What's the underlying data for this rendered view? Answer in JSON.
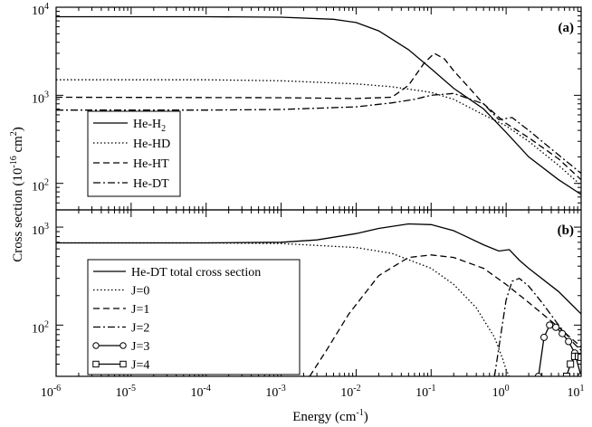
{
  "figure": {
    "xlabel": "Energy (cm",
    "xlabel_sup": "-1",
    "xlabel_end": ")",
    "ylabel": "Cross section (10",
    "ylabel_sup1": "-16",
    "ylabel_mid": " cm",
    "ylabel_sup2": "2",
    "ylabel_end": ")"
  },
  "chart_data": [
    {
      "panel_label": "(a)",
      "type": "line",
      "x_scale": "log",
      "y_scale": "log",
      "xlim": [
        1e-06,
        10
      ],
      "ylim": [
        50,
        10000
      ],
      "x_ticks": [
        "10",
        "10",
        "10",
        "10",
        "10",
        "10",
        "10",
        "10"
      ],
      "x_tick_exps": [
        "-6",
        "-5",
        "-4",
        "-3",
        "-2",
        "-1",
        "0",
        "1"
      ],
      "y_ticks": [
        "10",
        "10",
        "10"
      ],
      "y_tick_exps": [
        "2",
        "3",
        "4"
      ],
      "legend_position": "lower-left",
      "series": [
        {
          "name": "He-H",
          "name_sub": "2",
          "style": "solid",
          "x": [
            1e-06,
            0.0001,
            0.001,
            0.005,
            0.01,
            0.02,
            0.05,
            0.1,
            0.2,
            0.5,
            1,
            2,
            5,
            10
          ],
          "y": [
            7800,
            7800,
            7700,
            7300,
            6700,
            5400,
            3300,
            2000,
            1200,
            700,
            380,
            200,
            110,
            75
          ]
        },
        {
          "name": "He-HD",
          "style": "dotted",
          "x": [
            1e-06,
            0.0001,
            0.001,
            0.01,
            0.03,
            0.06,
            0.1,
            0.2,
            0.5,
            1,
            2,
            5,
            10
          ],
          "y": [
            1500,
            1500,
            1460,
            1350,
            1250,
            1150,
            1080,
            900,
            600,
            450,
            300,
            160,
            95
          ]
        },
        {
          "name": "He-HT",
          "style": "dashed",
          "x": [
            1e-06,
            0.001,
            0.01,
            0.03,
            0.05,
            0.08,
            0.11,
            0.15,
            0.2,
            0.3,
            0.5,
            1,
            2,
            5,
            10
          ],
          "y": [
            950,
            940,
            920,
            950,
            1300,
            2300,
            3000,
            2600,
            1900,
            1300,
            800,
            480,
            330,
            190,
            110
          ]
        },
        {
          "name": "He-DT",
          "style": "dashdot",
          "x": [
            1e-06,
            0.0001,
            0.001,
            0.01,
            0.03,
            0.06,
            0.1,
            0.2,
            0.5,
            0.8,
            1.2,
            2,
            5,
            10
          ],
          "y": [
            680,
            680,
            690,
            740,
            820,
            900,
            1000,
            1050,
            800,
            530,
            560,
            400,
            210,
            130
          ]
        }
      ]
    },
    {
      "panel_label": "(b)",
      "type": "line",
      "x_scale": "log",
      "y_scale": "log",
      "xlim": [
        1e-06,
        10
      ],
      "ylim": [
        30,
        1500
      ],
      "x_ticks": [
        "10",
        "10",
        "10",
        "10",
        "10",
        "10",
        "10",
        "10"
      ],
      "x_tick_exps": [
        "-6",
        "-5",
        "-4",
        "-3",
        "-2",
        "-1",
        "0",
        "1"
      ],
      "y_ticks": [
        "10",
        "10"
      ],
      "y_tick_exps": [
        "2",
        "3"
      ],
      "legend_position": "lower-left",
      "series": [
        {
          "name": "He-DT total cross section",
          "style": "solid",
          "x": [
            1e-06,
            0.0001,
            0.001,
            0.003,
            0.01,
            0.02,
            0.05,
            0.1,
            0.2,
            0.5,
            0.8,
            1.1,
            1.5,
            2,
            5,
            10
          ],
          "y": [
            690,
            690,
            700,
            740,
            860,
            970,
            1080,
            1060,
            920,
            660,
            570,
            590,
            460,
            380,
            220,
            130
          ]
        },
        {
          "name": "J=0",
          "style": "dotted",
          "x": [
            1e-06,
            0.0001,
            0.001,
            0.01,
            0.03,
            0.1,
            0.2,
            0.4,
            0.7,
            0.9,
            1.0,
            1.1
          ],
          "y": [
            690,
            690,
            680,
            620,
            540,
            380,
            260,
            150,
            75,
            45,
            35,
            30
          ]
        },
        {
          "name": "J=1",
          "style": "dashed",
          "x": [
            0.0024,
            0.004,
            0.008,
            0.02,
            0.05,
            0.1,
            0.2,
            0.5,
            1,
            2,
            5,
            10
          ],
          "y": [
            30,
            55,
            130,
            320,
            490,
            520,
            490,
            380,
            260,
            170,
            95,
            60
          ]
        },
        {
          "name": "J=2",
          "style": "dashdot",
          "x": [
            0.7,
            0.85,
            1.0,
            1.2,
            1.5,
            2,
            3,
            5,
            8,
            10
          ],
          "y": [
            30,
            80,
            180,
            280,
            300,
            250,
            170,
            100,
            65,
            55
          ]
        },
        {
          "name": "J=3",
          "style": "solid-circle",
          "x": [
            2.7,
            3.2,
            3.8,
            4.6,
            5.6,
            6.8,
            8.2,
            10
          ],
          "y": [
            30,
            75,
            100,
            95,
            82,
            68,
            52,
            30
          ]
        },
        {
          "name": "J=4",
          "style": "solid-square",
          "x": [
            6.4,
            7.2,
            8.2,
            9.2,
            10
          ],
          "y": [
            30,
            40,
            48,
            48,
            47
          ]
        }
      ]
    }
  ]
}
